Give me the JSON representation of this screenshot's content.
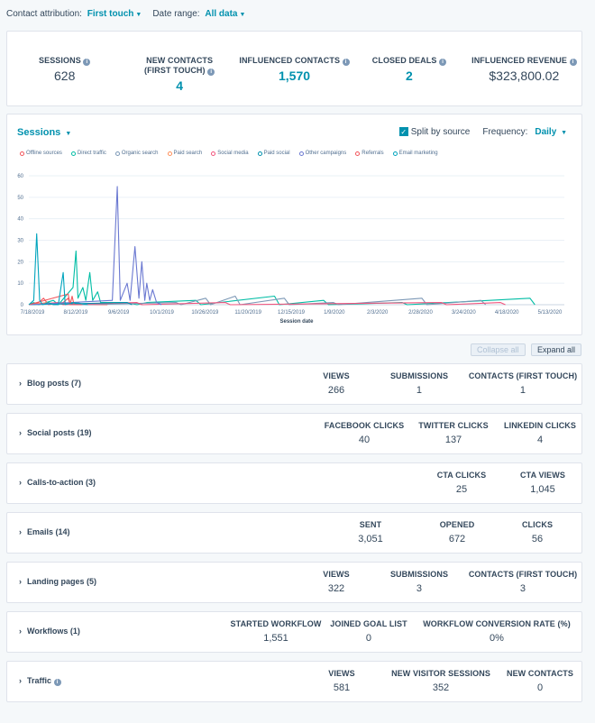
{
  "filters": {
    "attribution_label": "Contact attribution:",
    "attribution_value": "First touch",
    "daterange_label": "Date range:",
    "daterange_value": "All data"
  },
  "kpis": [
    {
      "label": "SESSIONS",
      "value": "628",
      "highlight": false
    },
    {
      "label": "NEW CONTACTS (FIRST TOUCH)",
      "value": "4",
      "highlight": true
    },
    {
      "label": "INFLUENCED CONTACTS",
      "value": "1,570",
      "highlight": true
    },
    {
      "label": "CLOSED DEALS",
      "value": "2",
      "highlight": true
    },
    {
      "label": "INFLUENCED REVENUE",
      "value": "$323,800.02",
      "highlight": false
    }
  ],
  "chart_card": {
    "metric_selector": "Sessions",
    "split_label": "Split by source",
    "frequency_label": "Frequency:",
    "frequency_value": "Daily"
  },
  "chart_data": {
    "type": "line",
    "xlabel": "Session date",
    "ylabel": "",
    "ylim": [
      0,
      60
    ],
    "yticks": [
      0,
      10,
      20,
      30,
      40,
      50,
      60
    ],
    "xticks": [
      "7/18/2019",
      "8/12/2019",
      "9/6/2019",
      "10/1/2019",
      "10/26/2019",
      "11/20/2019",
      "12/15/2019",
      "1/9/2020",
      "2/3/2020",
      "2/28/2020",
      "3/24/2020",
      "4/18/2020",
      "5/13/2020"
    ],
    "legend_position": "top-left",
    "grid": true,
    "series": [
      {
        "name": "Offline sources",
        "color": "#f2545b",
        "points": [
          [
            0,
            0
          ],
          [
            10,
            1
          ],
          [
            15,
            3
          ],
          [
            20,
            0
          ],
          [
            35,
            1
          ],
          [
            40,
            3
          ],
          [
            42,
            0
          ],
          [
            80,
            0
          ]
        ]
      },
      {
        "name": "Direct traffic",
        "color": "#00bda5",
        "points": [
          [
            0,
            0
          ],
          [
            5,
            1
          ],
          [
            10,
            0
          ],
          [
            25,
            2
          ],
          [
            30,
            0
          ],
          [
            45,
            8
          ],
          [
            48,
            25
          ],
          [
            50,
            3
          ],
          [
            55,
            8
          ],
          [
            58,
            2
          ],
          [
            62,
            15
          ],
          [
            65,
            2
          ],
          [
            70,
            6
          ],
          [
            73,
            1
          ],
          [
            100,
            1
          ],
          [
            110,
            0
          ],
          [
            120,
            1
          ],
          [
            170,
            2
          ],
          [
            175,
            0
          ],
          [
            250,
            4
          ],
          [
            255,
            0
          ],
          [
            300,
            2
          ],
          [
            305,
            0
          ],
          [
            380,
            1
          ],
          [
            385,
            0
          ],
          [
            510,
            3
          ],
          [
            515,
            0
          ]
        ]
      },
      {
        "name": "Organic search",
        "color": "#7c98b6",
        "points": [
          [
            0,
            0
          ],
          [
            50,
            1
          ],
          [
            55,
            0
          ],
          [
            150,
            1
          ],
          [
            155,
            0
          ],
          [
            180,
            3
          ],
          [
            185,
            0
          ],
          [
            210,
            4
          ],
          [
            215,
            0
          ],
          [
            260,
            3
          ],
          [
            265,
            0
          ],
          [
            310,
            1
          ],
          [
            315,
            0
          ],
          [
            400,
            3
          ],
          [
            405,
            0
          ],
          [
            460,
            2
          ],
          [
            465,
            0
          ]
        ]
      },
      {
        "name": "Paid search",
        "color": "#ff8f59",
        "points": [
          [
            0,
            0
          ],
          [
            20,
            1
          ],
          [
            25,
            0
          ]
        ]
      },
      {
        "name": "Social media",
        "color": "#f2547d",
        "points": [
          [
            0,
            0
          ],
          [
            30,
            1
          ],
          [
            35,
            0
          ],
          [
            110,
            1
          ],
          [
            115,
            0
          ],
          [
            200,
            1
          ],
          [
            205,
            0
          ],
          [
            420,
            1
          ],
          [
            425,
            0
          ],
          [
            480,
            1
          ],
          [
            485,
            0
          ]
        ]
      },
      {
        "name": "Paid social",
        "color": "#0091ae",
        "points": [
          [
            0,
            0
          ],
          [
            100,
            1
          ],
          [
            105,
            0
          ]
        ]
      },
      {
        "name": "Other campaigns",
        "color": "#6a78d1",
        "points": [
          [
            0,
            0
          ],
          [
            85,
            2
          ],
          [
            90,
            55
          ],
          [
            93,
            2
          ],
          [
            100,
            10
          ],
          [
            103,
            2
          ],
          [
            108,
            27
          ],
          [
            112,
            3
          ],
          [
            115,
            20
          ],
          [
            118,
            2
          ],
          [
            120,
            10
          ],
          [
            123,
            2
          ],
          [
            126,
            7
          ],
          [
            130,
            1
          ],
          [
            135,
            0
          ]
        ]
      },
      {
        "name": "Referrals",
        "color": "#f2545b",
        "points": [
          [
            0,
            0
          ],
          [
            40,
            5
          ],
          [
            42,
            0
          ],
          [
            44,
            4
          ],
          [
            46,
            0
          ]
        ]
      },
      {
        "name": "Email marketing",
        "color": "#00a4bd",
        "points": [
          [
            0,
            0
          ],
          [
            5,
            2
          ],
          [
            8,
            33
          ],
          [
            11,
            2
          ],
          [
            14,
            0
          ],
          [
            20,
            1
          ],
          [
            25,
            0
          ],
          [
            30,
            0
          ],
          [
            35,
            15
          ],
          [
            37,
            0
          ],
          [
            45,
            1
          ],
          [
            60,
            0
          ]
        ]
      }
    ]
  },
  "buttons": {
    "collapse": "Collapse all",
    "expand": "Expand all"
  },
  "sections": [
    {
      "title": "Blog posts (7)",
      "info": false,
      "metrics": [
        {
          "label": "VIEWS",
          "value": "266"
        },
        {
          "label": "SUBMISSIONS",
          "value": "1"
        },
        {
          "label": "CONTACTS (FIRST TOUCH)",
          "value": "1"
        }
      ]
    },
    {
      "title": "Social posts (19)",
      "info": false,
      "metrics": [
        {
          "label": "FACEBOOK CLICKS",
          "value": "40"
        },
        {
          "label": "TWITTER CLICKS",
          "value": "137"
        },
        {
          "label": "LINKEDIN CLICKS",
          "value": "4"
        }
      ]
    },
    {
      "title": "Calls-to-action (3)",
      "info": false,
      "metrics": [
        {
          "label": "CTA CLICKS",
          "value": "25"
        },
        {
          "label": "CTA VIEWS",
          "value": "1,045"
        }
      ]
    },
    {
      "title": "Emails (14)",
      "info": false,
      "metrics": [
        {
          "label": "SENT",
          "value": "3,051"
        },
        {
          "label": "OPENED",
          "value": "672"
        },
        {
          "label": "CLICKS",
          "value": "56"
        }
      ]
    },
    {
      "title": "Landing pages (5)",
      "info": false,
      "metrics": [
        {
          "label": "VIEWS",
          "value": "322"
        },
        {
          "label": "SUBMISSIONS",
          "value": "3"
        },
        {
          "label": "CONTACTS (FIRST TOUCH)",
          "value": "3"
        }
      ]
    },
    {
      "title": "Workflows (1)",
      "info": false,
      "metrics": [
        {
          "label": "STARTED WORKFLOW",
          "value": "1,551"
        },
        {
          "label": "JOINED GOAL LIST",
          "value": "0"
        },
        {
          "label": "WORKFLOW CONVERSION RATE (%)",
          "value": "0%"
        }
      ]
    },
    {
      "title": "Traffic",
      "info": true,
      "metrics": [
        {
          "label": "VIEWS",
          "value": "581"
        },
        {
          "label": "NEW VISITOR SESSIONS",
          "value": "352"
        },
        {
          "label": "NEW CONTACTS",
          "value": "0"
        }
      ]
    }
  ]
}
